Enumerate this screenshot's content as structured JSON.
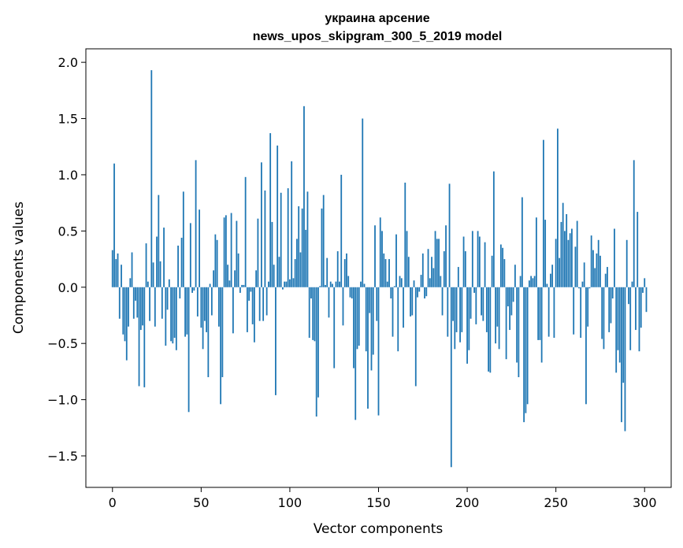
{
  "chart_data": {
    "type": "bar",
    "title": [
      "украина арсение",
      "news_upos_skipgram_300_5_2019 model"
    ],
    "xlabel": "Vector components",
    "ylabel": "Components values",
    "xlim": [
      -15,
      315
    ],
    "ylim": [
      -1.78,
      2.12
    ],
    "xticks": [
      0,
      50,
      100,
      150,
      200,
      250,
      300
    ],
    "xtick_labels": [
      "0",
      "50",
      "100",
      "150",
      "200",
      "250",
      "300"
    ],
    "yticks": [
      -1.5,
      -1.0,
      -0.5,
      0.0,
      0.5,
      1.0,
      1.5,
      2.0
    ],
    "ytick_labels": [
      "−1.5",
      "−1.0",
      "−0.5",
      "0.0",
      "0.5",
      "1.0",
      "1.5",
      "2.0"
    ],
    "grid": false,
    "color": "#1f77b4",
    "values": [
      0.33,
      1.1,
      0.25,
      0.3,
      -0.28,
      0.2,
      -0.42,
      -0.48,
      -0.65,
      -0.35,
      0.08,
      0.31,
      -0.28,
      -0.12,
      -0.27,
      -0.88,
      -0.38,
      -0.34,
      -0.89,
      0.39,
      0.05,
      -0.3,
      1.93,
      0.22,
      -0.35,
      0.45,
      0.82,
      0.23,
      -0.28,
      0.53,
      -0.52,
      -0.2,
      0.07,
      -0.48,
      -0.5,
      -0.45,
      -0.56,
      0.37,
      -0.1,
      0.44,
      0.85,
      -0.44,
      -0.42,
      -1.11,
      0.57,
      -0.05,
      -0.03,
      1.13,
      -0.26,
      0.69,
      -0.36,
      -0.55,
      -0.3,
      -0.4,
      -0.8,
      0.03,
      -0.25,
      0.15,
      0.47,
      0.42,
      -0.35,
      -1.04,
      -0.8,
      0.62,
      0.64,
      0.2,
      0.06,
      0.66,
      -0.41,
      0.15,
      0.59,
      0.3,
      -0.05,
      0.02,
      0.02,
      0.98,
      -0.4,
      -0.12,
      -0.04,
      -0.33,
      -0.49,
      0.15,
      0.61,
      -0.3,
      1.11,
      -0.3,
      0.86,
      -0.25,
      0.05,
      1.37,
      0.58,
      0.2,
      -0.96,
      1.26,
      0.27,
      0.84,
      -0.02,
      0.05,
      0.05,
      0.88,
      0.07,
      1.12,
      0.08,
      0.25,
      0.43,
      0.72,
      0.31,
      0.7,
      1.61,
      0.51,
      0.85,
      -0.45,
      -0.1,
      -0.47,
      -0.48,
      -1.15,
      -0.98,
      0.01,
      0.7,
      0.82,
      0.02,
      0.26,
      -0.27,
      0.05,
      0.03,
      -0.72,
      0.05,
      0.32,
      0.05,
      1.0,
      -0.34,
      0.25,
      0.3,
      0.1,
      -0.09,
      -0.1,
      -0.72,
      -1.18,
      -0.55,
      -0.52,
      0.05,
      1.5,
      0.03,
      -0.57,
      -1.08,
      -0.23,
      -0.74,
      -0.6,
      0.55,
      -0.3,
      -1.14,
      0.62,
      0.5,
      0.3,
      0.25,
      0.05,
      0.25,
      -0.1,
      -0.44,
      0.01,
      0.47,
      -0.57,
      0.1,
      0.08,
      -0.36,
      0.93,
      0.5,
      0.27,
      -0.26,
      -0.25,
      0.06,
      -0.88,
      -0.09,
      -0.04,
      0.11,
      0.3,
      -0.1,
      -0.08,
      0.34,
      0.08,
      0.27,
      0.17,
      0.5,
      0.43,
      0.43,
      0.1,
      -0.25,
      0.32,
      0.55,
      -0.44,
      0.92,
      -1.6,
      -0.3,
      -0.55,
      -0.4,
      0.18,
      -0.49,
      -0.4,
      0.45,
      0.32,
      -0.68,
      -0.56,
      -0.28,
      0.5,
      -0.05,
      -0.33,
      0.5,
      0.45,
      -0.25,
      -0.3,
      0.4,
      -0.4,
      -0.75,
      -0.76,
      0.28,
      1.03,
      -0.5,
      -0.35,
      -0.55,
      0.38,
      0.35,
      0.25,
      -0.64,
      -0.17,
      -0.38,
      -0.25,
      -0.13,
      0.2,
      -0.67,
      -0.8,
      0.1,
      0.8,
      -1.2,
      -1.12,
      -1.04,
      0.06,
      0.1,
      0.08,
      0.1,
      0.62,
      -0.47,
      -0.47,
      -0.67,
      1.31,
      0.6,
      0.03,
      -0.44,
      0.12,
      0.2,
      -0.45,
      0.43,
      1.41,
      0.26,
      0.58,
      0.75,
      0.5,
      0.65,
      0.42,
      0.48,
      0.52,
      -0.42,
      0.36,
      0.59,
      -0.01,
      -0.45,
      0.05,
      0.22,
      -1.04,
      -0.35,
      -0.01,
      0.46,
      0.33,
      0.17,
      0.3,
      0.42,
      0.28,
      -0.46,
      -0.55,
      0.12,
      0.18,
      -0.4,
      -0.32,
      -0.1,
      0.52,
      -0.76,
      -0.56,
      -0.67,
      -1.2,
      -0.85,
      -1.28,
      0.42,
      -0.15,
      -0.56,
      0.05,
      1.13,
      -0.38,
      0.67,
      -0.57,
      -0.36,
      -0.05,
      0.08,
      -0.22
    ]
  }
}
